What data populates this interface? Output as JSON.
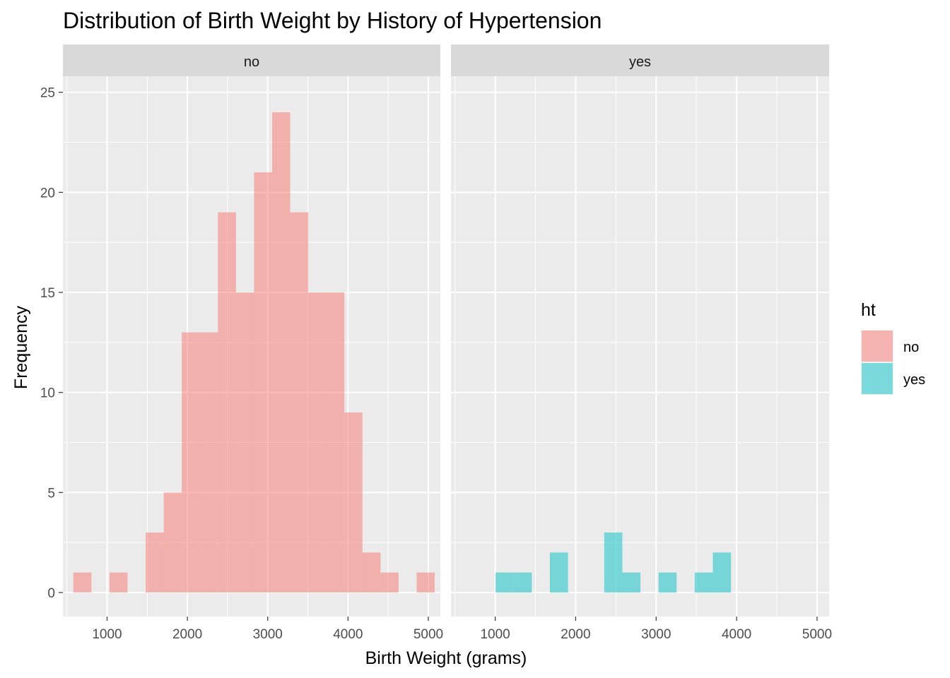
{
  "chart_data": {
    "type": "bar",
    "title": "Distribution of Birth Weight by History of Hypertension",
    "xlabel": "Birth Weight (grams)",
    "ylabel": "Frequency",
    "xlim": [
      450,
      5150
    ],
    "ylim": [
      -1.2,
      25.8
    ],
    "x_ticks": [
      1000,
      2000,
      3000,
      4000,
      5000
    ],
    "x_tick_labels": [
      "1000",
      "2000",
      "3000",
      "4000",
      "5000"
    ],
    "y_ticks": [
      0,
      5,
      10,
      15,
      20,
      25
    ],
    "y_tick_labels": [
      "0",
      "5",
      "10",
      "15",
      "20",
      "25"
    ],
    "bin_width": 225,
    "grid": true,
    "legend": {
      "title": "ht",
      "position": "right",
      "entries": [
        {
          "label": "no",
          "color": "#F8766D"
        },
        {
          "label": "yes",
          "color": "#00BFC4"
        }
      ]
    },
    "fill_alpha": 0.5,
    "panels": [
      {
        "strip_label": "no",
        "color": "#F8766D",
        "bins": [
          {
            "x_start": 580,
            "x_end": 805,
            "count": 1
          },
          {
            "x_start": 1030,
            "x_end": 1255,
            "count": 1
          },
          {
            "x_start": 1480,
            "x_end": 1705,
            "count": 3
          },
          {
            "x_start": 1705,
            "x_end": 1930,
            "count": 5
          },
          {
            "x_start": 1930,
            "x_end": 2155,
            "count": 13
          },
          {
            "x_start": 2155,
            "x_end": 2380,
            "count": 13
          },
          {
            "x_start": 2380,
            "x_end": 2605,
            "count": 19
          },
          {
            "x_start": 2605,
            "x_end": 2830,
            "count": 15
          },
          {
            "x_start": 2830,
            "x_end": 3055,
            "count": 21
          },
          {
            "x_start": 3055,
            "x_end": 3280,
            "count": 24
          },
          {
            "x_start": 3280,
            "x_end": 3505,
            "count": 19
          },
          {
            "x_start": 3505,
            "x_end": 3730,
            "count": 15
          },
          {
            "x_start": 3730,
            "x_end": 3955,
            "count": 15
          },
          {
            "x_start": 3955,
            "x_end": 4180,
            "count": 9
          },
          {
            "x_start": 4180,
            "x_end": 4405,
            "count": 2
          },
          {
            "x_start": 4405,
            "x_end": 4630,
            "count": 1
          },
          {
            "x_start": 4855,
            "x_end": 5080,
            "count": 1
          }
        ]
      },
      {
        "strip_label": "yes",
        "color": "#00BFC4",
        "bins": [
          {
            "x_start": 1005,
            "x_end": 1230,
            "count": 1
          },
          {
            "x_start": 1230,
            "x_end": 1455,
            "count": 1
          },
          {
            "x_start": 1680,
            "x_end": 1905,
            "count": 2
          },
          {
            "x_start": 2355,
            "x_end": 2580,
            "count": 3
          },
          {
            "x_start": 2580,
            "x_end": 2805,
            "count": 1
          },
          {
            "x_start": 3030,
            "x_end": 3255,
            "count": 1
          },
          {
            "x_start": 3480,
            "x_end": 3705,
            "count": 1
          },
          {
            "x_start": 3705,
            "x_end": 3930,
            "count": 2
          }
        ]
      }
    ]
  }
}
